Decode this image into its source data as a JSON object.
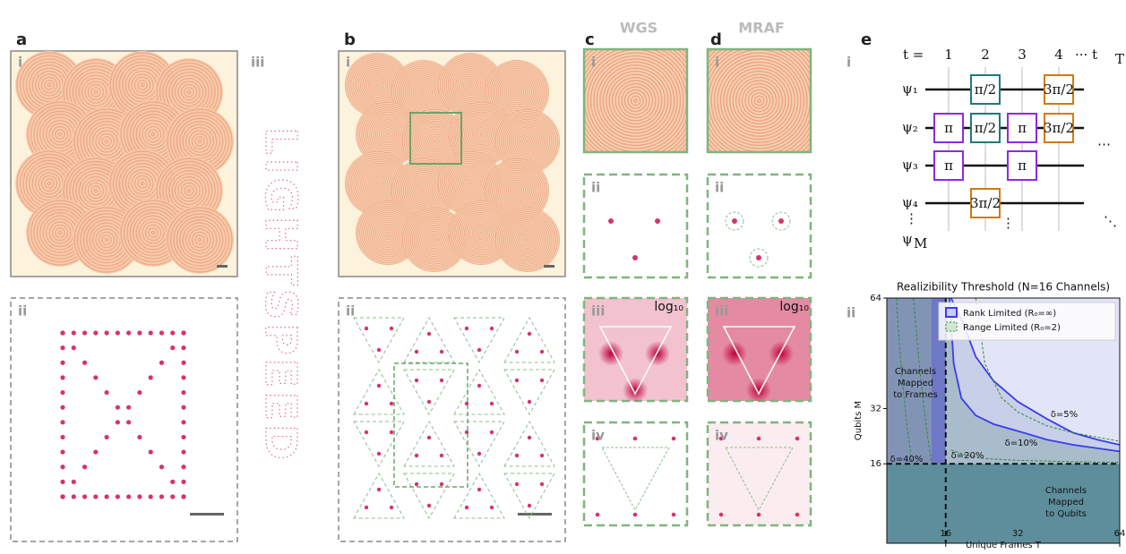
{
  "panels": {
    "a": "a",
    "b": "b",
    "c": "c",
    "d": "d",
    "e": "e"
  },
  "subpanels": {
    "i": "i",
    "ii": "ii",
    "iii": "iii",
    "iv": "iv"
  },
  "headers": {
    "c": "WGS",
    "d": "MRAF"
  },
  "log_label": "log₁₀",
  "letters": "LIGHTSPEED",
  "circuit": {
    "time_label": "t =",
    "times": [
      "1",
      "2",
      "3",
      "4"
    ],
    "time_end": "··· t",
    "time_end_sub": "T",
    "qubits": [
      "ψ₁",
      "ψ₂",
      "ψ₃",
      "ψ₄"
    ],
    "qubit_last": "ψ",
    "qubit_last_sub": "M",
    "gates": [
      {
        "label": "π/2",
        "color": "#1f7a7a"
      },
      {
        "label": "3π/2",
        "color": "#d07a10"
      },
      {
        "label": "π",
        "color": "#8a2be2"
      },
      {
        "label": "π/2",
        "color": "#1f7a7a"
      },
      {
        "label": "π",
        "color": "#8a2be2"
      },
      {
        "label": "3π/2",
        "color": "#d07a10"
      },
      {
        "label": "π",
        "color": "#8a2be2"
      },
      {
        "label": "π",
        "color": "#8a2be2"
      },
      {
        "label": "3π/2",
        "color": "#d07a10"
      }
    ]
  },
  "chart_data": {
    "type": "line",
    "title": "Realizibility Threshold (N=16 Channels)",
    "x_label": "Unique Frames T",
    "y_label": "Qubits M",
    "xscale": "sqrt",
    "xlim": [
      7,
      64
    ],
    "ylim": [
      -7,
      64
    ],
    "xticks": [
      16,
      32,
      64
    ],
    "yticks": [
      16,
      32,
      64
    ],
    "threshold_x": 16,
    "threshold_y": 16,
    "legend": "upper right",
    "series": [
      {
        "name": "Rank Limited (R₀=∞)",
        "color": "#3b3bf0",
        "dashed": false,
        "x": [
          17,
          19.3,
          22,
          26,
          32,
          40,
          48,
          56,
          64
        ],
        "values": [
          64,
          57,
          47,
          40,
          34,
          29,
          25,
          23,
          21.5
        ]
      },
      {
        "color": "#3b3bf0",
        "dashed": false,
        "x": [
          16.7,
          17.5,
          19,
          22,
          26,
          32,
          40,
          48,
          64
        ],
        "values": [
          64,
          45,
          35,
          30,
          27.5,
          25.5,
          23,
          21.5,
          19.6
        ]
      },
      {
        "name": "Range Limited (R₀=2)",
        "color": "#2e8b2e",
        "dashed": true,
        "x": [
          22,
          24,
          28,
          32,
          40,
          48,
          64
        ],
        "values": [
          64,
          45,
          35,
          31,
          27,
          25,
          22.5
        ]
      },
      {
        "color": "#2e8b2e",
        "dashed": true,
        "x": [
          17,
          20,
          24,
          32,
          48,
          64
        ],
        "values": [
          20,
          18.5,
          17.5,
          17,
          16.6,
          16.4
        ]
      },
      {
        "color": "#2e8b2e",
        "dashed": true,
        "x": [
          10.6,
          11.5,
          12.5,
          13.5
        ],
        "values": [
          64,
          45,
          28,
          16
        ]
      },
      {
        "color": "#2e8b2e",
        "dashed": true,
        "x": [
          8.2,
          8.8,
          9.6,
          10.4
        ],
        "values": [
          64,
          45,
          28,
          16
        ]
      }
    ],
    "annotations": [
      "δ=5%",
      "δ=10%",
      "δ=20%",
      "δ=40%",
      [
        "Channels",
        "Mapped",
        "to Frames"
      ],
      [
        "Channels",
        "Mapped",
        "to Qubits"
      ]
    ]
  }
}
